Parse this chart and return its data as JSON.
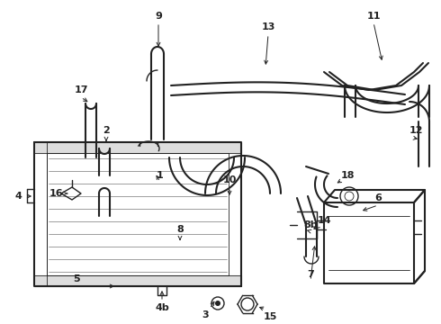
{
  "bg_color": "#ffffff",
  "line_color": "#222222",
  "fig_width": 4.9,
  "fig_height": 3.6,
  "dpi": 100,
  "label_size": 8,
  "lw_main": 1.0,
  "lw_thick": 1.5,
  "lw_thin": 0.6
}
